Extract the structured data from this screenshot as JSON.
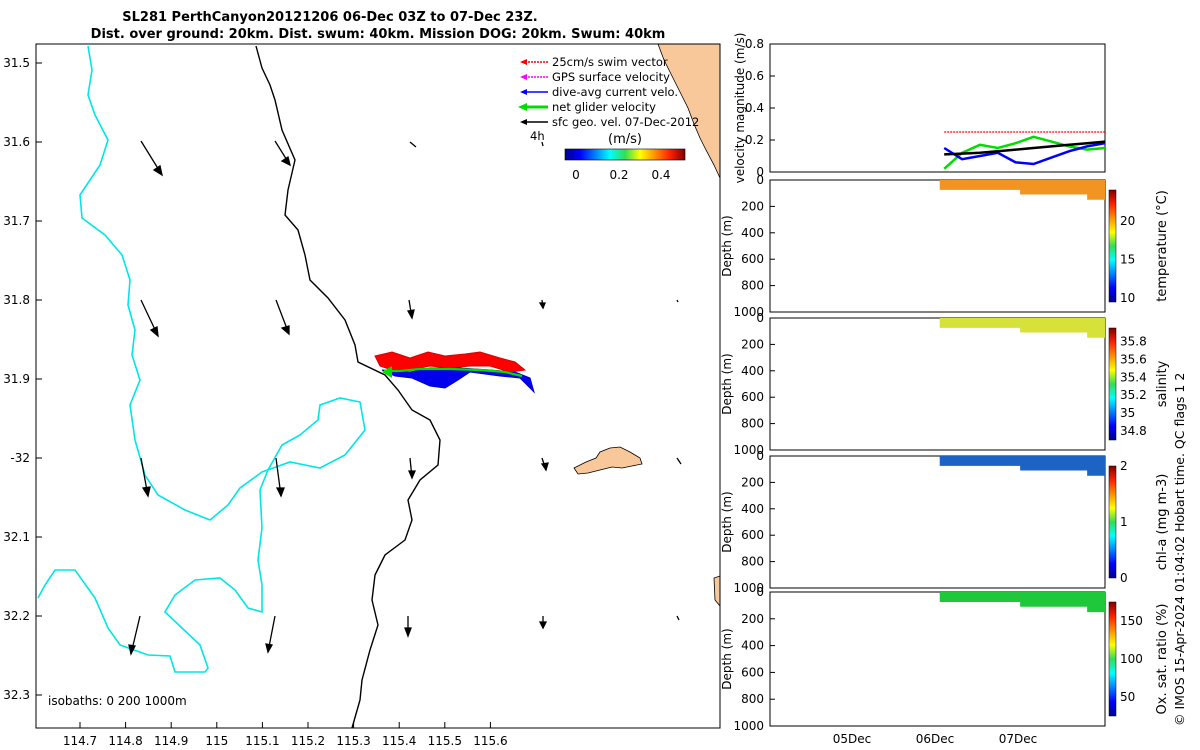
{
  "title": {
    "line1": "SL281 PerthCanyon20121206 06-Dec 03Z to 07-Dec 23Z.",
    "line2": "Dist. over ground: 20km. Dist. swum: 40km. Mission DOG: 20km. Swum: 40km"
  },
  "map": {
    "lon_ticks": [
      "114.7",
      "114.8",
      "114.9",
      "115",
      "115.1",
      "115.2",
      "115.3",
      "115.4",
      "115.5",
      "115.6"
    ],
    "lat_ticks": [
      "31.5",
      "31.6",
      "31.7",
      "31.8",
      "31.9",
      "-32",
      "32.1",
      "32.2",
      "32.3"
    ],
    "legend": [
      {
        "label": "25cm/s swim vector",
        "color": "#ff0000"
      },
      {
        "label": "GPS surface velocity",
        "color": "#ff00ff"
      },
      {
        "label": "dive-avg current velo.",
        "color": "#0000ff"
      },
      {
        "label": "net glider velocity",
        "color": "#00dd00"
      },
      {
        "label": "sfc geo. vel. 07-Dec-2012",
        "color": "#000000"
      }
    ],
    "time_marker": "4h",
    "colorbar": {
      "title": "(m/s)",
      "ticks": [
        "0",
        "0.2",
        "0.4"
      ],
      "range": [
        0,
        0.5
      ]
    },
    "isobath_label": "isobaths: 0   200  1000m",
    "colors": {
      "land": "#f9c89a",
      "isobath_200": "#00e6e6",
      "isobath_1000": "#000000"
    }
  },
  "chart_data": [
    {
      "type": "line",
      "ylabel": "velocity magnitude (m/s)",
      "ylim": [
        0,
        0.8
      ],
      "yticks": [
        "0",
        "0.2",
        "0.4",
        "0.6",
        "0.8"
      ],
      "x_days": [
        5.2,
        5.4,
        5.6,
        5.8,
        6.0,
        6.2,
        6.4,
        6.6,
        6.8,
        7.0,
        7.2,
        7.4,
        7.6,
        7.8,
        8.0
      ],
      "series": [
        {
          "color": "#ff0000",
          "values": [
            null,
            null,
            null,
            null,
            null,
            0.25,
            0.25,
            0.25,
            0.25,
            0.25,
            0.25,
            0.25,
            0.25,
            0.25,
            0.25
          ]
        },
        {
          "color": "#00dd00",
          "values": [
            null,
            null,
            null,
            null,
            null,
            0.02,
            0.12,
            0.17,
            0.15,
            0.18,
            0.22,
            0.19,
            0.16,
            0.14,
            0.15
          ]
        },
        {
          "color": "#0000ff",
          "values": [
            null,
            null,
            null,
            null,
            null,
            0.15,
            0.08,
            0.1,
            0.12,
            0.06,
            0.05,
            0.09,
            0.13,
            0.16,
            0.18
          ]
        },
        {
          "color": "#000000",
          "values": [
            null,
            null,
            null,
            null,
            null,
            0.11,
            0.115,
            0.12,
            0.13,
            0.14,
            0.15,
            0.16,
            0.17,
            0.18,
            0.19
          ]
        }
      ]
    },
    {
      "type": "heatmap",
      "ylabel": "Depth (m)",
      "cbar_label": "temperature (°C)",
      "ylim": [
        0,
        1000
      ],
      "yticks": [
        "0",
        "200",
        "400",
        "600",
        "800",
        "1000"
      ],
      "cbar_ticks": [
        "10",
        "15",
        "20"
      ],
      "clim": [
        9.5,
        24
      ],
      "value": 22,
      "color": "#f29422"
    },
    {
      "type": "heatmap",
      "ylabel": "Depth (m)",
      "cbar_label": "salinity",
      "ylim": [
        0,
        1000
      ],
      "yticks": [
        "0",
        "200",
        "400",
        "600",
        "800",
        "1000"
      ],
      "cbar_ticks": [
        "34.8",
        "35",
        "35.2",
        "35.4",
        "35.6",
        "35.8"
      ],
      "clim": [
        34.7,
        35.95
      ],
      "value": 35.55,
      "color": "#d6e23a"
    },
    {
      "type": "heatmap",
      "ylabel": "Depth (m)",
      "cbar_label": "chl-a (mg m-3)",
      "ylim": [
        0,
        1000
      ],
      "yticks": [
        "0",
        "200",
        "400",
        "600",
        "800",
        "1000"
      ],
      "cbar_ticks": [
        "0",
        "1",
        "2"
      ],
      "clim": [
        0,
        2
      ],
      "value": 0.5,
      "color": "#1d63c4"
    },
    {
      "type": "heatmap",
      "ylabel": "Depth (m)",
      "cbar_label": "Ox. sat. ratio (%)",
      "ylim": [
        0,
        1000
      ],
      "yticks": [
        "0",
        "200",
        "400",
        "600",
        "800",
        "1000"
      ],
      "cbar_ticks": [
        "50",
        "100",
        "150"
      ],
      "clim": [
        25,
        175
      ],
      "value": 105,
      "color": "#1ec83a"
    }
  ],
  "time_axis": {
    "ticks": [
      "05Dec",
      "06Dec",
      "07Dec"
    ]
  },
  "credit": "© IMOS 15-Apr-2024 01:04:02 Hobart time. QC flags 1  2"
}
